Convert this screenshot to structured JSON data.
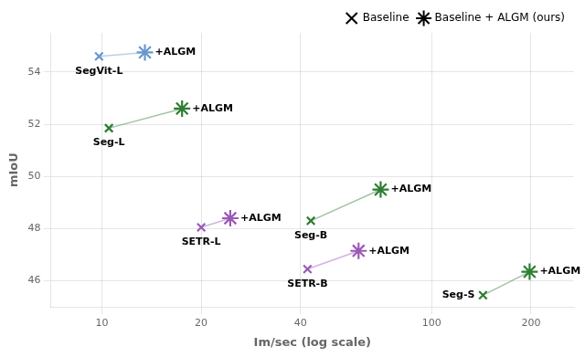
{
  "chart_data": {
    "type": "scatter",
    "xlabel": "Im/sec (log scale)",
    "ylabel": "mIoU",
    "log": "x",
    "xlim": [
      7,
      270
    ],
    "ylim": [
      45.0,
      55.5
    ],
    "xticks": [
      10,
      20,
      40,
      100,
      200
    ],
    "yticks": [
      46,
      48,
      50,
      52,
      54
    ],
    "grid": true,
    "legend": "upper right",
    "legend_entries": [
      {
        "name": "Baseline",
        "marker": "x",
        "color": "#000000"
      },
      {
        "name": "Baseline + ALGM (ours)",
        "marker": "star",
        "color": "#000000"
      }
    ],
    "series": [
      {
        "name": "SegVit-L",
        "color": "#6699cc",
        "x": [
          9.8,
          13.5
        ],
        "values": [
          54.6,
          54.75
        ],
        "point_labels": [
          "SegVit-L",
          "+ALGM"
        ]
      },
      {
        "name": "Seg-L",
        "color": "#2e7d32",
        "x": [
          10.5,
          17.5
        ],
        "values": [
          51.85,
          52.6
        ],
        "point_labels": [
          "Seg-L",
          "+ALGM"
        ]
      },
      {
        "name": "SETR-L",
        "color": "#9b59b6",
        "x": [
          20.0,
          24.5
        ],
        "values": [
          48.05,
          48.4
        ],
        "point_labels": [
          "SETR-L",
          "+ALGM"
        ]
      },
      {
        "name": "Seg-B",
        "color": "#2e7d32",
        "x": [
          43.0,
          70.0
        ],
        "values": [
          48.3,
          49.5
        ],
        "point_labels": [
          "Seg-B",
          "+ALGM"
        ]
      },
      {
        "name": "SETR-B",
        "color": "#9b59b6",
        "x": [
          42.0,
          60.0
        ],
        "values": [
          46.45,
          47.15
        ],
        "point_labels": [
          "SETR-B",
          "+ALGM"
        ]
      },
      {
        "name": "Seg-S",
        "color": "#2e7d32",
        "x": [
          143.0,
          198.0
        ],
        "values": [
          45.45,
          46.35
        ],
        "point_labels": [
          "Seg-S",
          "+ALGM"
        ]
      }
    ]
  }
}
